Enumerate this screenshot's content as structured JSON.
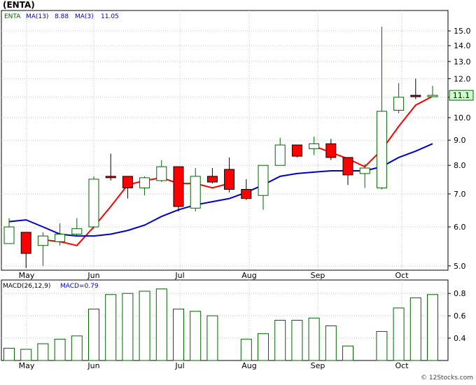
{
  "title": "(ENTA)",
  "price_panel": {
    "symbol": "ENTA",
    "ma13_label": "MA(13)",
    "ma13_value": "8.88",
    "ma3_label": "MA(3)",
    "ma3_value": "11.05",
    "last_price_tag": "11.1",
    "y_ticks": [
      "5.0",
      "6.0",
      "7.0",
      "8.0",
      "9.0",
      "10.0",
      "11.0",
      "12.0",
      "13.0",
      "14.0",
      "15.0"
    ]
  },
  "macd_panel": {
    "label": "MACD(26,12,9)",
    "value_label": "MACD=0.79",
    "y_ticks": [
      "0.4",
      "0.6",
      "0.8"
    ]
  },
  "months": [
    "May",
    "Jun",
    "Jul",
    "Aug",
    "Sep",
    "Oct"
  ],
  "footer": "© 12Stocks.com",
  "colors": {
    "up_body": "#ffffff",
    "up_border": "#006400",
    "down_body": "#ff0000",
    "ma3": "#ff0000",
    "ma13": "#0000cc",
    "macd_bar": "#006400",
    "grid": "#c8c8c8",
    "price_tag_bg": "#ccffcc"
  },
  "chart_data": [
    {
      "type": "candlestick",
      "title": "(ENTA)",
      "scale": "log",
      "ylim": [
        4.9,
        16.5
      ],
      "x": [
        "May-1",
        "May-2",
        "May-3",
        "May-4",
        "May-5",
        "Jun-1",
        "Jun-2",
        "Jun-3",
        "Jun-4",
        "Jun-5",
        "Jul-1",
        "Jul-2",
        "Jul-3",
        "Jul-4",
        "Aug-1",
        "Aug-2",
        "Aug-3",
        "Aug-4",
        "Sep-1",
        "Sep-2",
        "Sep-3",
        "Sep-4",
        "Sep-5",
        "Oct-1",
        "Oct-2",
        "Oct-3"
      ],
      "ohlc": [
        [
          5.55,
          6.25,
          5.55,
          6.0
        ],
        [
          5.85,
          5.85,
          4.95,
          5.3
        ],
        [
          5.5,
          5.85,
          5.0,
          5.75
        ],
        [
          5.6,
          6.1,
          5.5,
          5.8
        ],
        [
          5.8,
          6.25,
          5.75,
          5.95
        ],
        [
          6.0,
          7.6,
          5.95,
          7.5
        ],
        [
          7.6,
          8.45,
          7.45,
          7.55
        ],
        [
          7.6,
          7.6,
          6.85,
          7.2
        ],
        [
          7.2,
          7.6,
          6.95,
          7.55
        ],
        [
          7.45,
          8.2,
          7.4,
          7.95
        ],
        [
          7.95,
          7.95,
          6.45,
          6.6
        ],
        [
          6.55,
          7.9,
          6.45,
          7.6
        ],
        [
          7.6,
          7.9,
          7.35,
          7.4
        ],
        [
          7.85,
          8.3,
          7.05,
          7.15
        ],
        [
          7.15,
          7.5,
          6.8,
          6.85
        ],
        [
          6.95,
          8.0,
          6.5,
          8.0
        ],
        [
          8.0,
          9.1,
          8.0,
          8.8
        ],
        [
          8.8,
          8.8,
          8.3,
          8.35
        ],
        [
          8.65,
          9.15,
          8.4,
          8.85
        ],
        [
          8.85,
          9.05,
          8.2,
          8.3
        ],
        [
          8.3,
          8.3,
          7.3,
          7.65
        ],
        [
          7.7,
          8.05,
          7.2,
          7.9
        ],
        [
          7.2,
          15.3,
          7.15,
          10.3
        ],
        [
          10.35,
          11.75,
          10.2,
          11.0
        ],
        [
          11.1,
          12.0,
          10.9,
          11.05
        ],
        [
          11.1,
          11.6,
          11.05,
          11.1
        ]
      ],
      "series": [
        {
          "name": "MA(3)",
          "values": [
            null,
            null,
            5.65,
            5.6,
            5.5,
            6.0,
            6.6,
            7.3,
            7.45,
            7.55,
            7.35,
            7.35,
            7.2,
            7.35,
            null,
            null,
            null,
            null,
            8.75,
            8.5,
            8.25,
            7.95,
            8.6,
            9.6,
            10.6,
            11.05
          ]
        },
        {
          "name": "MA(13)",
          "values": [
            6.15,
            6.2,
            6.0,
            5.8,
            5.75,
            5.75,
            5.8,
            5.9,
            6.05,
            6.3,
            6.5,
            6.65,
            6.75,
            6.85,
            7.05,
            7.3,
            7.6,
            7.7,
            7.75,
            7.8,
            7.8,
            7.8,
            7.95,
            8.3,
            8.55,
            8.85
          ]
        }
      ]
    },
    {
      "type": "bar",
      "title": "MACD(26,12,9)",
      "ylim": [
        0.2,
        0.92
      ],
      "values": [
        0.31,
        0.3,
        0.35,
        0.39,
        0.42,
        0.66,
        0.79,
        0.8,
        0.82,
        0.84,
        0.66,
        0.64,
        0.6,
        null,
        0.39,
        0.44,
        0.56,
        0.56,
        0.58,
        0.51,
        0.33,
        null,
        0.46,
        0.67,
        0.76,
        0.79
      ]
    }
  ]
}
